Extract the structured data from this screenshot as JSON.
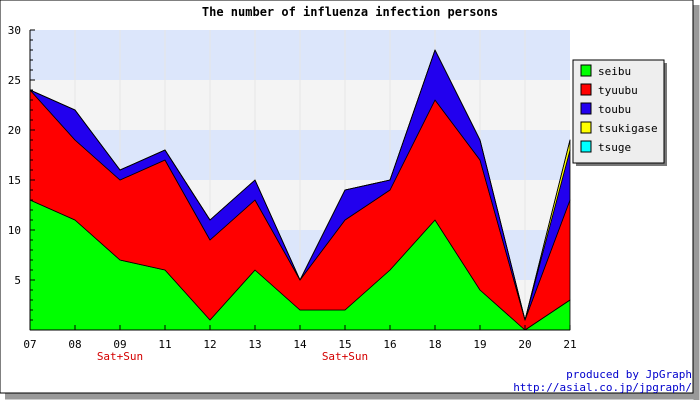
{
  "chart_data": {
    "type": "area",
    "stacked": true,
    "title": "The number of influenza infection persons",
    "categories": [
      "07",
      "08",
      "09",
      "11",
      "12",
      "13",
      "14",
      "15",
      "16",
      "18",
      "19",
      "20",
      "21"
    ],
    "weekend_markers": [
      {
        "category": "09",
        "label": "Sat+Sun"
      },
      {
        "category": "15",
        "label": "Sat+Sun"
      }
    ],
    "ylim": [
      0,
      30
    ],
    "yticks": [
      5,
      10,
      15,
      20,
      25,
      30
    ],
    "background_bands": [
      "#dce6fb",
      "#f4f4f4"
    ],
    "legend_position": "right",
    "series": [
      {
        "name": "seibu",
        "color": "#00ff00",
        "values": [
          13,
          11,
          7,
          6,
          1,
          6,
          2,
          2,
          6,
          11,
          4,
          0,
          3
        ]
      },
      {
        "name": "tyuubu",
        "color": "#ff0000",
        "values": [
          11,
          8,
          8,
          11,
          8,
          7,
          3,
          9,
          8,
          12,
          13,
          1,
          10
        ]
      },
      {
        "name": "toubu",
        "color": "#2200ee",
        "values": [
          0,
          3,
          1,
          1,
          2,
          2,
          0,
          3,
          1,
          5,
          2,
          0,
          5
        ]
      },
      {
        "name": "tsukigase",
        "color": "#ffff00",
        "values": [
          0,
          0,
          0,
          0,
          0,
          0,
          0,
          0,
          0,
          0,
          0,
          0,
          1
        ]
      },
      {
        "name": "tsuge",
        "color": "#00ffff",
        "values": [
          0,
          0,
          0,
          0,
          0,
          0,
          0,
          0,
          0,
          0,
          0,
          0,
          0
        ]
      }
    ]
  },
  "credits": {
    "line1": "produced by JpGraph",
    "line2": "http://asial.co.jp/jpgraph/"
  }
}
